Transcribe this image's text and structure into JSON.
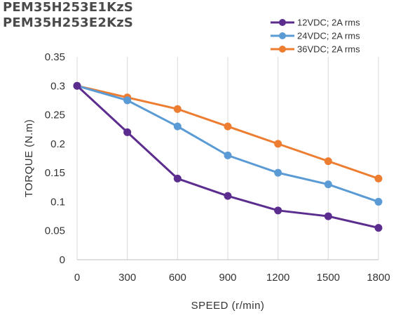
{
  "header": {
    "title_line1": "PEM35H253E1KzS",
    "title_line2": "PEM35H253E2KzS"
  },
  "chart_data": {
    "type": "line",
    "title": "PEM35H253E1KzS PEM35H253E2KzS",
    "xlabel": "SPEED (r/min)",
    "ylabel": "TORQUE (N.m)",
    "x": [
      0,
      300,
      600,
      900,
      1200,
      1500,
      1800
    ],
    "x_tick_labels": [
      "0",
      "300",
      "600",
      "900",
      "1200",
      "1500",
      "1800"
    ],
    "y_tick_labels": [
      "0",
      "0.05",
      "0.1",
      "0.15",
      "0.2",
      "0.25",
      "0.3",
      "0.35"
    ],
    "ylim": [
      0,
      0.35
    ],
    "grid": "vertical",
    "legend_position": "top-right",
    "series": [
      {
        "name": "12VDC; 2A rms",
        "color": "#5b2d8e",
        "values": [
          0.3,
          0.22,
          0.14,
          0.11,
          0.085,
          0.075,
          0.055
        ]
      },
      {
        "name": "24VDC; 2A rms",
        "color": "#5b9bd5",
        "values": [
          0.3,
          0.275,
          0.23,
          0.18,
          0.15,
          0.13,
          0.1
        ]
      },
      {
        "name": "36VDC; 2A rms",
        "color": "#ed7d31",
        "values": [
          0.3,
          0.28,
          0.26,
          0.23,
          0.2,
          0.17,
          0.14
        ]
      }
    ]
  }
}
